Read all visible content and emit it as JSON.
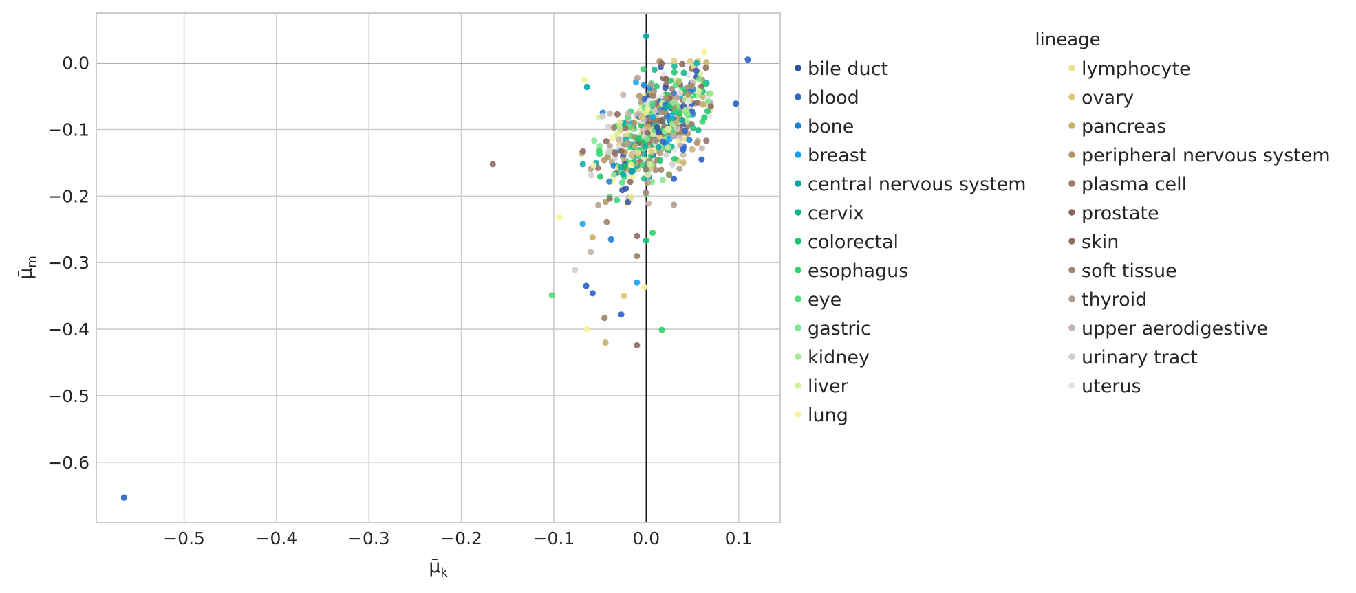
{
  "chart_data": {
    "type": "scatter",
    "title": "",
    "xlabel": "μ̄k",
    "ylabel": "μ̄m",
    "xlabel_main": "μ̄",
    "xlabel_sub": "k",
    "ylabel_main": "μ̄",
    "ylabel_sub": "m",
    "xlim": [
      -0.595,
      0.145
    ],
    "ylim": [
      -0.69,
      0.075
    ],
    "x_ticks": [
      -0.5,
      -0.4,
      -0.3,
      -0.2,
      -0.1,
      0.0,
      0.1
    ],
    "x_tick_labels": [
      "−0.5",
      "−0.4",
      "−0.3",
      "−0.2",
      "−0.1",
      "0.0",
      "0.1"
    ],
    "y_ticks": [
      0.0,
      -0.1,
      -0.2,
      -0.3,
      -0.4,
      -0.5,
      -0.6
    ],
    "y_tick_labels": [
      "0.0",
      "−0.1",
      "−0.2",
      "−0.3",
      "−0.4",
      "−0.5",
      "−0.6"
    ],
    "grid": true,
    "reference_lines": {
      "x": 0.0,
      "y": 0.0
    },
    "legend": {
      "title": "lineage",
      "placement": "right, outside plot, two columns",
      "entries": [
        {
          "name": "bile duct",
          "color": "#2f4ea8"
        },
        {
          "name": "blood",
          "color": "#2a62c6"
        },
        {
          "name": "bone",
          "color": "#1a80d8"
        },
        {
          "name": "breast",
          "color": "#10a2ee"
        },
        {
          "name": "central nervous system",
          "color": "#0aa8a8"
        },
        {
          "name": "cervix",
          "color": "#0fb58a"
        },
        {
          "name": "colorectal",
          "color": "#17c56c"
        },
        {
          "name": "esophagus",
          "color": "#2fd36e"
        },
        {
          "name": "eye",
          "color": "#55dc7c"
        },
        {
          "name": "gastric",
          "color": "#80e48a"
        },
        {
          "name": "kidney",
          "color": "#a8ea90"
        },
        {
          "name": "liver",
          "color": "#d2f29a"
        },
        {
          "name": "lung",
          "color": "#f6f39a"
        },
        {
          "name": "lymphocyte",
          "color": "#ece28e"
        },
        {
          "name": "ovary",
          "color": "#dcc97c"
        },
        {
          "name": "pancreas",
          "color": "#c6b06c"
        },
        {
          "name": "peripheral nervous system",
          "color": "#ad9462"
        },
        {
          "name": "plasma cell",
          "color": "#9a7e62"
        },
        {
          "name": "prostate",
          "color": "#8a6458"
        },
        {
          "name": "skin",
          "color": "#8f6c66"
        },
        {
          "name": "soft tissue",
          "color": "#a18474"
        },
        {
          "name": "thyroid",
          "color": "#b29c8c"
        },
        {
          "name": "upper aerodigestive",
          "color": "#c4b4aa"
        },
        {
          "name": "urinary tract",
          "color": "#d4cdca"
        },
        {
          "name": "uterus",
          "color": "#e6e4e4"
        }
      ]
    },
    "cluster": {
      "x_mean": 0.0,
      "x_sd": 0.028,
      "y_mean": -0.1,
      "y_sd": 0.045,
      "n_points": 560
    },
    "points": [
      {
        "x": -0.565,
        "y": -0.653,
        "lineage": "blood"
      },
      {
        "x": 0.11,
        "y": 0.005,
        "lineage": "blood"
      },
      {
        "x": 0.097,
        "y": -0.061,
        "lineage": "blood"
      },
      {
        "x": -0.166,
        "y": -0.152,
        "lineage": "skin"
      },
      {
        "x": -0.102,
        "y": -0.349,
        "lineage": "eye"
      },
      {
        "x": -0.094,
        "y": -0.232,
        "lineage": "lung"
      },
      {
        "x": 0.0,
        "y": 0.04,
        "lineage": "central nervous system"
      },
      {
        "x": 0.063,
        "y": 0.016,
        "lineage": "lung"
      },
      {
        "x": 0.017,
        "y": -0.401,
        "lineage": "esophagus"
      },
      {
        "x": -0.01,
        "y": -0.424,
        "lineage": "skin"
      },
      {
        "x": -0.044,
        "y": -0.42,
        "lineage": "pancreas"
      },
      {
        "x": -0.064,
        "y": -0.4,
        "lineage": "lung"
      },
      {
        "x": -0.027,
        "y": -0.378,
        "lineage": "blood"
      },
      {
        "x": -0.045,
        "y": -0.383,
        "lineage": "plasma cell"
      },
      {
        "x": -0.065,
        "y": -0.335,
        "lineage": "blood"
      },
      {
        "x": -0.058,
        "y": -0.346,
        "lineage": "blood"
      },
      {
        "x": -0.077,
        "y": -0.311,
        "lineage": "urinary tract"
      },
      {
        "x": -0.01,
        "y": -0.33,
        "lineage": "breast"
      },
      {
        "x": -0.002,
        "y": -0.337,
        "lineage": "lung"
      },
      {
        "x": -0.024,
        "y": -0.35,
        "lineage": "ovary"
      },
      {
        "x": -0.06,
        "y": -0.284,
        "lineage": "upper aerodigestive"
      },
      {
        "x": -0.058,
        "y": -0.262,
        "lineage": "pancreas"
      },
      {
        "x": -0.038,
        "y": -0.265,
        "lineage": "bone"
      },
      {
        "x": -0.01,
        "y": -0.29,
        "lineage": "plasma cell"
      },
      {
        "x": 0.0,
        "y": -0.267,
        "lineage": "colorectal"
      },
      {
        "x": 0.007,
        "y": -0.255,
        "lineage": "esophagus"
      },
      {
        "x": -0.01,
        "y": -0.26,
        "lineage": "skin"
      },
      {
        "x": 0.03,
        "y": -0.213,
        "lineage": "thyroid"
      },
      {
        "x": -0.064,
        "y": -0.036,
        "lineage": "central nervous system"
      },
      {
        "x": -0.067,
        "y": -0.025,
        "lineage": "lung"
      },
      {
        "x": -0.047,
        "y": -0.08,
        "lineage": "urinary tract"
      },
      {
        "x": 0.055,
        "y": -0.12,
        "lineage": "peripheral nervous system"
      },
      {
        "x": 0.06,
        "y": -0.145,
        "lineage": "blood"
      },
      {
        "x": 0.07,
        "y": -0.065,
        "lineage": "skin"
      },
      {
        "x": 0.067,
        "y": -0.058,
        "lineage": "gastric"
      },
      {
        "x": 0.03,
        "y": -0.174,
        "lineage": "blood"
      },
      {
        "x": 0.04,
        "y": -0.13,
        "lineage": "blood"
      }
    ]
  }
}
